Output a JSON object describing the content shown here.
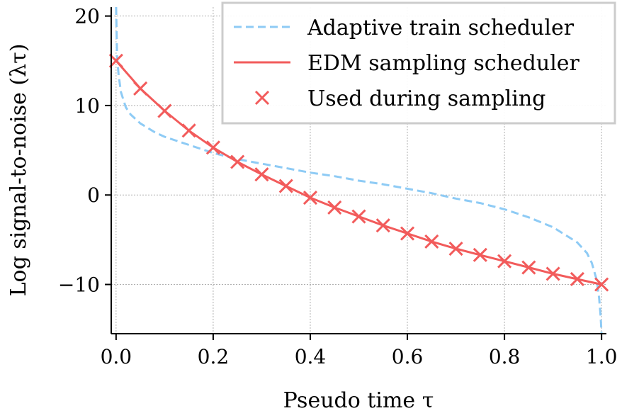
{
  "chart_data": {
    "type": "line",
    "xlabel": "Pseudo time τ",
    "ylabel": "Log signal-to-noise (λτ)",
    "xlim": [
      -0.01,
      1.01
    ],
    "ylim": [
      -15.5,
      21
    ],
    "xticks": [
      0.0,
      0.2,
      0.4,
      0.6,
      0.8,
      1.0
    ],
    "xtick_labels": [
      "0.0",
      "0.2",
      "0.4",
      "0.6",
      "0.8",
      "1.0"
    ],
    "yticks": [
      -10,
      0,
      10,
      20
    ],
    "ytick_labels": [
      "−10",
      "0",
      "10",
      "20"
    ],
    "grid": true,
    "legend_position": "top-right",
    "series": [
      {
        "name": "Adaptive train scheduler",
        "style": "dashed",
        "color": "#8ecbf5",
        "x": [
          0.0,
          0.002,
          0.005,
          0.01,
          0.02,
          0.03,
          0.05,
          0.08,
          0.1,
          0.15,
          0.2,
          0.25,
          0.3,
          0.35,
          0.4,
          0.45,
          0.5,
          0.55,
          0.6,
          0.65,
          0.7,
          0.75,
          0.8,
          0.85,
          0.9,
          0.95,
          0.97,
          0.98,
          0.99,
          0.995,
          0.998,
          1.0
        ],
        "y": [
          21,
          15.5,
          13.5,
          11.5,
          9.8,
          9.0,
          8.0,
          7.0,
          6.5,
          5.6,
          4.7,
          4.0,
          3.5,
          3.0,
          2.5,
          2.1,
          1.6,
          1.2,
          0.7,
          0.2,
          -0.4,
          -0.9,
          -1.6,
          -2.5,
          -3.6,
          -5.3,
          -6.5,
          -7.6,
          -9.5,
          -11.5,
          -13.5,
          -15.5
        ]
      },
      {
        "name": "EDM sampling scheduler",
        "style": "solid",
        "color": "#f25b5b",
        "x": [
          0.0,
          0.05,
          0.1,
          0.15,
          0.2,
          0.25,
          0.3,
          0.35,
          0.4,
          0.45,
          0.5,
          0.55,
          0.6,
          0.65,
          0.7,
          0.75,
          0.8,
          0.85,
          0.9,
          0.95,
          1.0
        ],
        "y": [
          15.0,
          11.9,
          9.4,
          7.2,
          5.3,
          3.7,
          2.3,
          1.0,
          -0.3,
          -1.4,
          -2.4,
          -3.4,
          -4.3,
          -5.2,
          -6.0,
          -6.7,
          -7.4,
          -8.1,
          -8.8,
          -9.4,
          -10.0
        ]
      },
      {
        "name": "Used during sampling",
        "style": "markers",
        "marker": "x",
        "color": "#f25b5b",
        "x": [
          0.0,
          0.05,
          0.1,
          0.15,
          0.2,
          0.25,
          0.3,
          0.35,
          0.4,
          0.45,
          0.5,
          0.55,
          0.6,
          0.65,
          0.7,
          0.75,
          0.8,
          0.85,
          0.9,
          0.95,
          1.0
        ],
        "y": [
          15.0,
          11.9,
          9.4,
          7.2,
          5.3,
          3.7,
          2.3,
          1.0,
          -0.3,
          -1.4,
          -2.4,
          -3.4,
          -4.3,
          -5.2,
          -6.0,
          -6.7,
          -7.4,
          -8.1,
          -8.8,
          -9.4,
          -10.0
        ]
      }
    ]
  }
}
